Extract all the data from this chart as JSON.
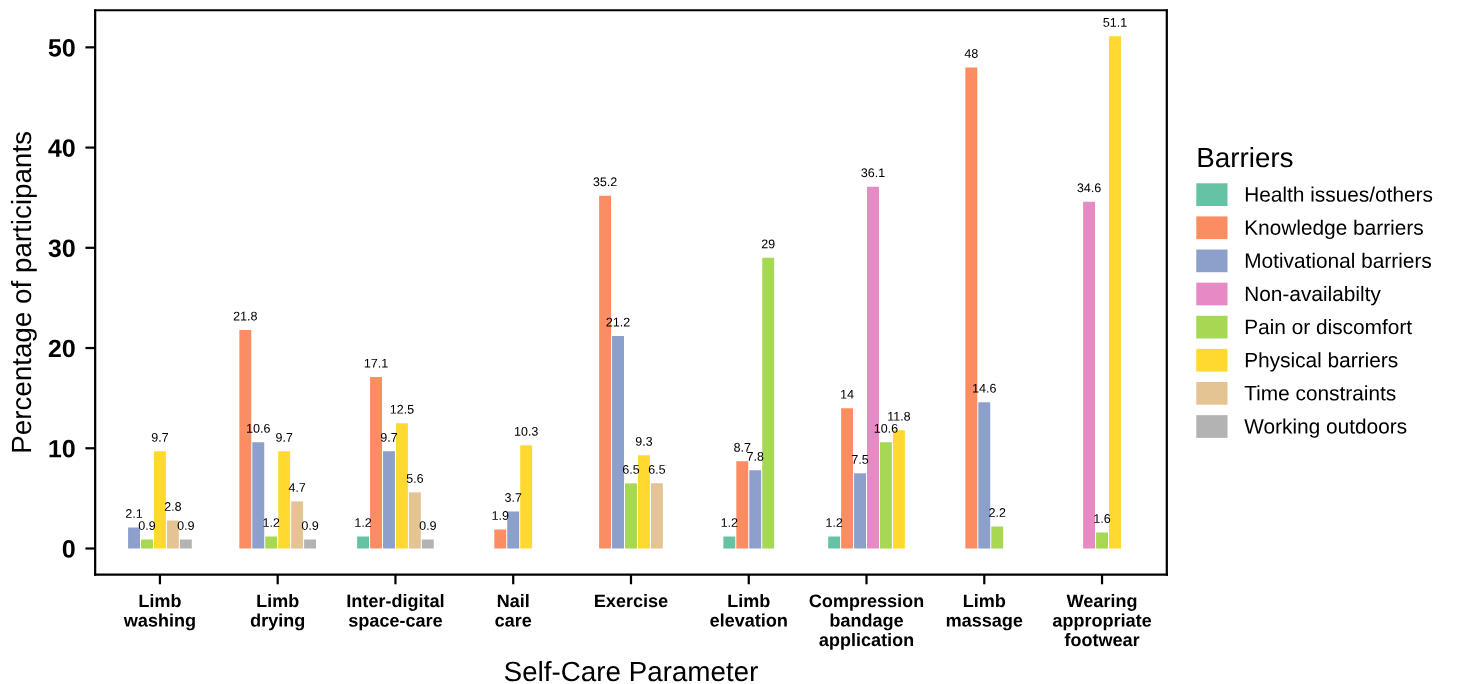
{
  "chart_data": {
    "type": "bar",
    "xlabel": "Self-Care Parameter",
    "ylabel": "Percentage of participants",
    "legend_title": "Barriers",
    "categories": [
      "Limb\nwashing",
      "Limb\ndrying",
      "Inter-digital\nspace-care",
      "Nail\ncare",
      "Exercise",
      "Limb\nelevation",
      "Compression\nbandage\napplication",
      "Limb\nmassage",
      "Wearing\nappropriate\nfootwear"
    ],
    "series": [
      {
        "name": "Health issues/others",
        "color": "#66c2a5",
        "values": [
          null,
          null,
          1.2,
          null,
          null,
          1.2,
          1.2,
          null,
          null
        ]
      },
      {
        "name": "Knowledge barriers",
        "color": "#fc8d62",
        "values": [
          null,
          21.8,
          17.1,
          1.9,
          35.2,
          8.7,
          14,
          48,
          null
        ]
      },
      {
        "name": "Motivational barriers",
        "color": "#8da0cb",
        "values": [
          2.1,
          10.6,
          9.7,
          3.7,
          21.2,
          7.8,
          7.5,
          14.6,
          null
        ]
      },
      {
        "name": "Non-availabilty",
        "color": "#e78ac3",
        "values": [
          null,
          null,
          null,
          null,
          null,
          null,
          36.1,
          null,
          34.6
        ]
      },
      {
        "name": "Pain or discomfort",
        "color": "#a6d854",
        "values": [
          0.9,
          1.2,
          null,
          null,
          6.5,
          29,
          10.6,
          2.2,
          1.6
        ]
      },
      {
        "name": "Physical barriers",
        "color": "#ffd92f",
        "values": [
          9.7,
          9.7,
          12.5,
          10.3,
          9.3,
          null,
          11.8,
          null,
          51.1
        ]
      },
      {
        "name": "Time constraints",
        "color": "#e5c494",
        "values": [
          2.8,
          4.7,
          5.6,
          null,
          6.5,
          null,
          null,
          null,
          null
        ]
      },
      {
        "name": "Working outdoors",
        "color": "#b3b3b3",
        "values": [
          0.9,
          0.9,
          0.9,
          null,
          null,
          null,
          null,
          null,
          null
        ]
      }
    ],
    "ylim": [
      -2.6,
      53.7
    ],
    "yticks": [
      0,
      10,
      20,
      30,
      40,
      50
    ],
    "grid": false,
    "legend": "right",
    "data_labels": true
  }
}
